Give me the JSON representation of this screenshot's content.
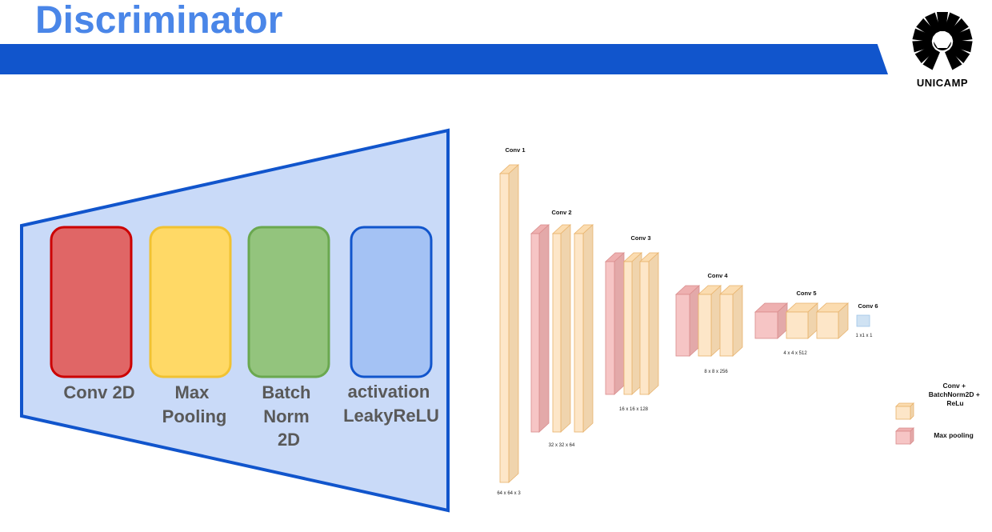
{
  "title": "Discriminator",
  "logo": {
    "text": "UNICAMP"
  },
  "blocks": [
    {
      "label_lines": [
        "Conv 2D"
      ],
      "fill": "#e06666",
      "stroke": "#cc0000"
    },
    {
      "label_lines": [
        "Max",
        "Pooling"
      ],
      "fill": "#ffd966",
      "stroke": "#f1c232"
    },
    {
      "label_lines": [
        "Batch",
        "Norm",
        "2D"
      ],
      "fill": "#93c47d",
      "stroke": "#6aa84f"
    },
    {
      "label_lines": [
        "activation",
        "LeakyReLU"
      ],
      "fill": "#a4c2f4",
      "stroke": "#1155cc"
    }
  ],
  "trapezoid": {
    "fill": "#c9daf8",
    "stroke": "#1155cc"
  },
  "layers": {
    "conv1": {
      "title": "Conv 1",
      "dims": "64 x 64 x 3"
    },
    "conv2": {
      "title": "Conv 2",
      "dims": "32 x 32 x 64"
    },
    "conv3": {
      "title": "Conv 3",
      "dims": "16 x 16 x 128"
    },
    "conv4": {
      "title": "Conv 4",
      "dims": "8 x 8 x 256"
    },
    "conv5": {
      "title": "Conv 5",
      "dims": "4 x 4 x 512"
    },
    "conv6": {
      "title": "Conv 6",
      "dims": "1 x1 x 1"
    }
  },
  "colors": {
    "conv_front": "#fde6c8",
    "conv_top": "#fbdcb0",
    "conv_side": "#f0d4ad",
    "conv_stroke": "#e8b26b",
    "pool_front": "#f6c5c5",
    "pool_top": "#eeb0b0",
    "pool_side": "#e3a9a9",
    "pool_stroke": "#d98c8c",
    "out_front": "#cfe2f3",
    "out_stroke": "#9fc5e8"
  },
  "legend": {
    "conv_lines": [
      "Conv +",
      "BatchNorm2D +",
      "ReLu"
    ],
    "pool_label": "Max pooling"
  }
}
